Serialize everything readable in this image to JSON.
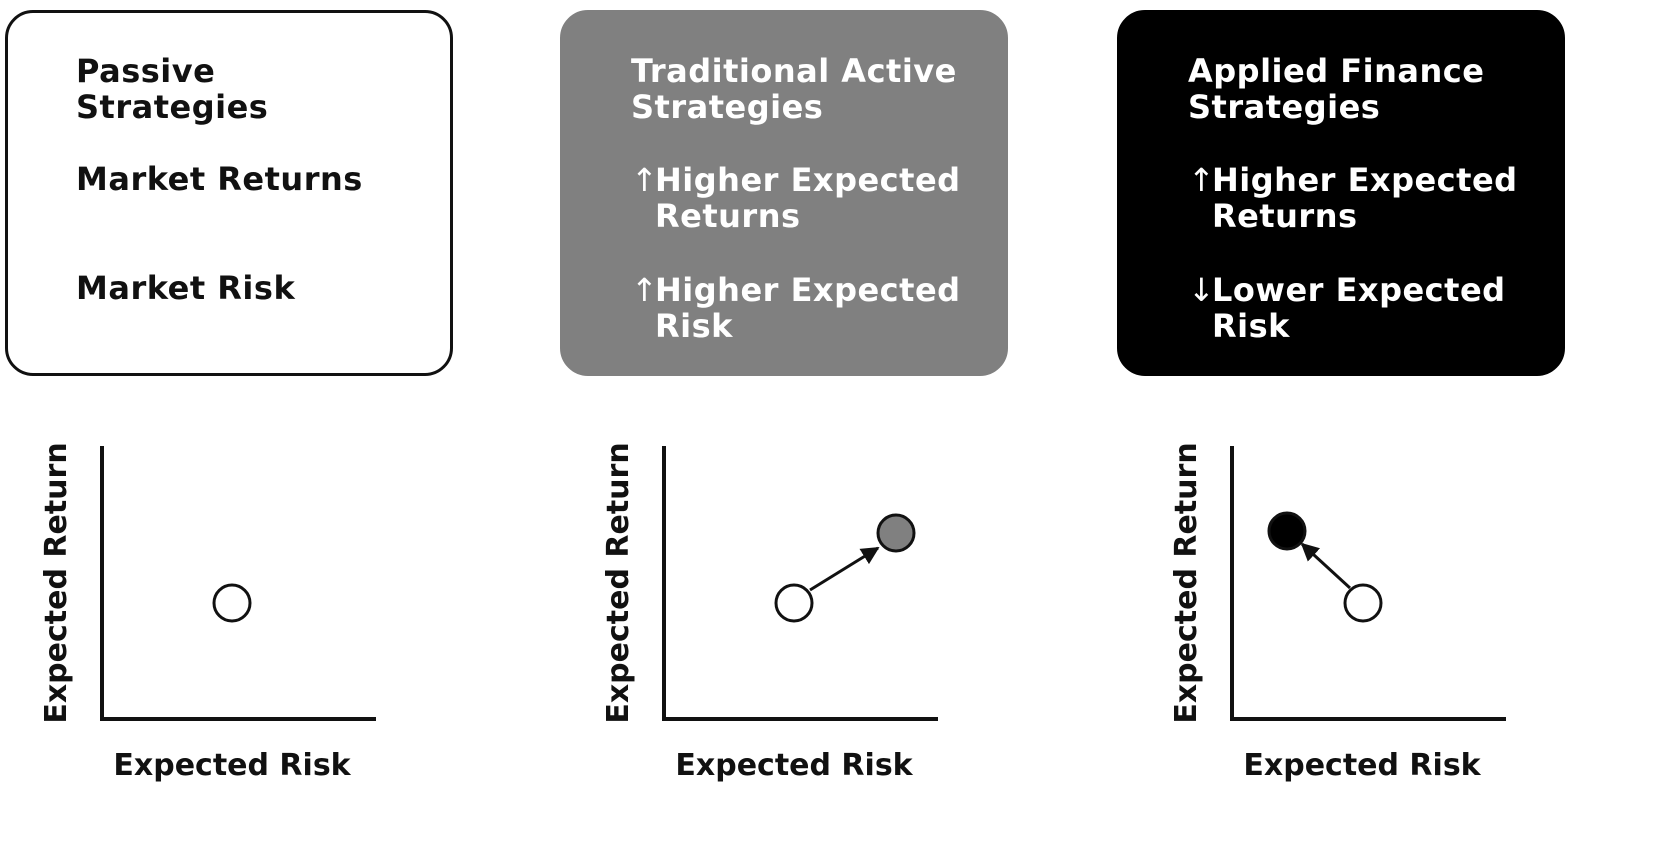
{
  "cards": [
    {
      "title": "Passive\nStrategies",
      "lines": [
        {
          "arrow": "",
          "text": "Market Returns"
        },
        {
          "arrow": "",
          "text": "Market Risk"
        }
      ]
    },
    {
      "title": "Traditional Active\nStrategies",
      "lines": [
        {
          "arrow": "↑",
          "text": "Higher Expected\nReturns"
        },
        {
          "arrow": "↑",
          "text": "Higher Expected\nRisk"
        }
      ]
    },
    {
      "title": "Applied Finance\nStrategies",
      "lines": [
        {
          "arrow": "↑",
          "text": "Higher Expected\nReturns"
        },
        {
          "arrow": "↓",
          "text": "Lower Expected\nRisk"
        }
      ]
    }
  ],
  "plots": [
    {
      "x_label": "Expected Risk",
      "y_label": "Expected Return"
    },
    {
      "x_label": "Expected Risk",
      "y_label": "Expected Return"
    },
    {
      "x_label": "Expected Risk",
      "y_label": "Expected Return"
    }
  ],
  "colors": {
    "passive_fill": "#ffffff",
    "active_fill": "#808080",
    "applied_fill": "#000000"
  }
}
